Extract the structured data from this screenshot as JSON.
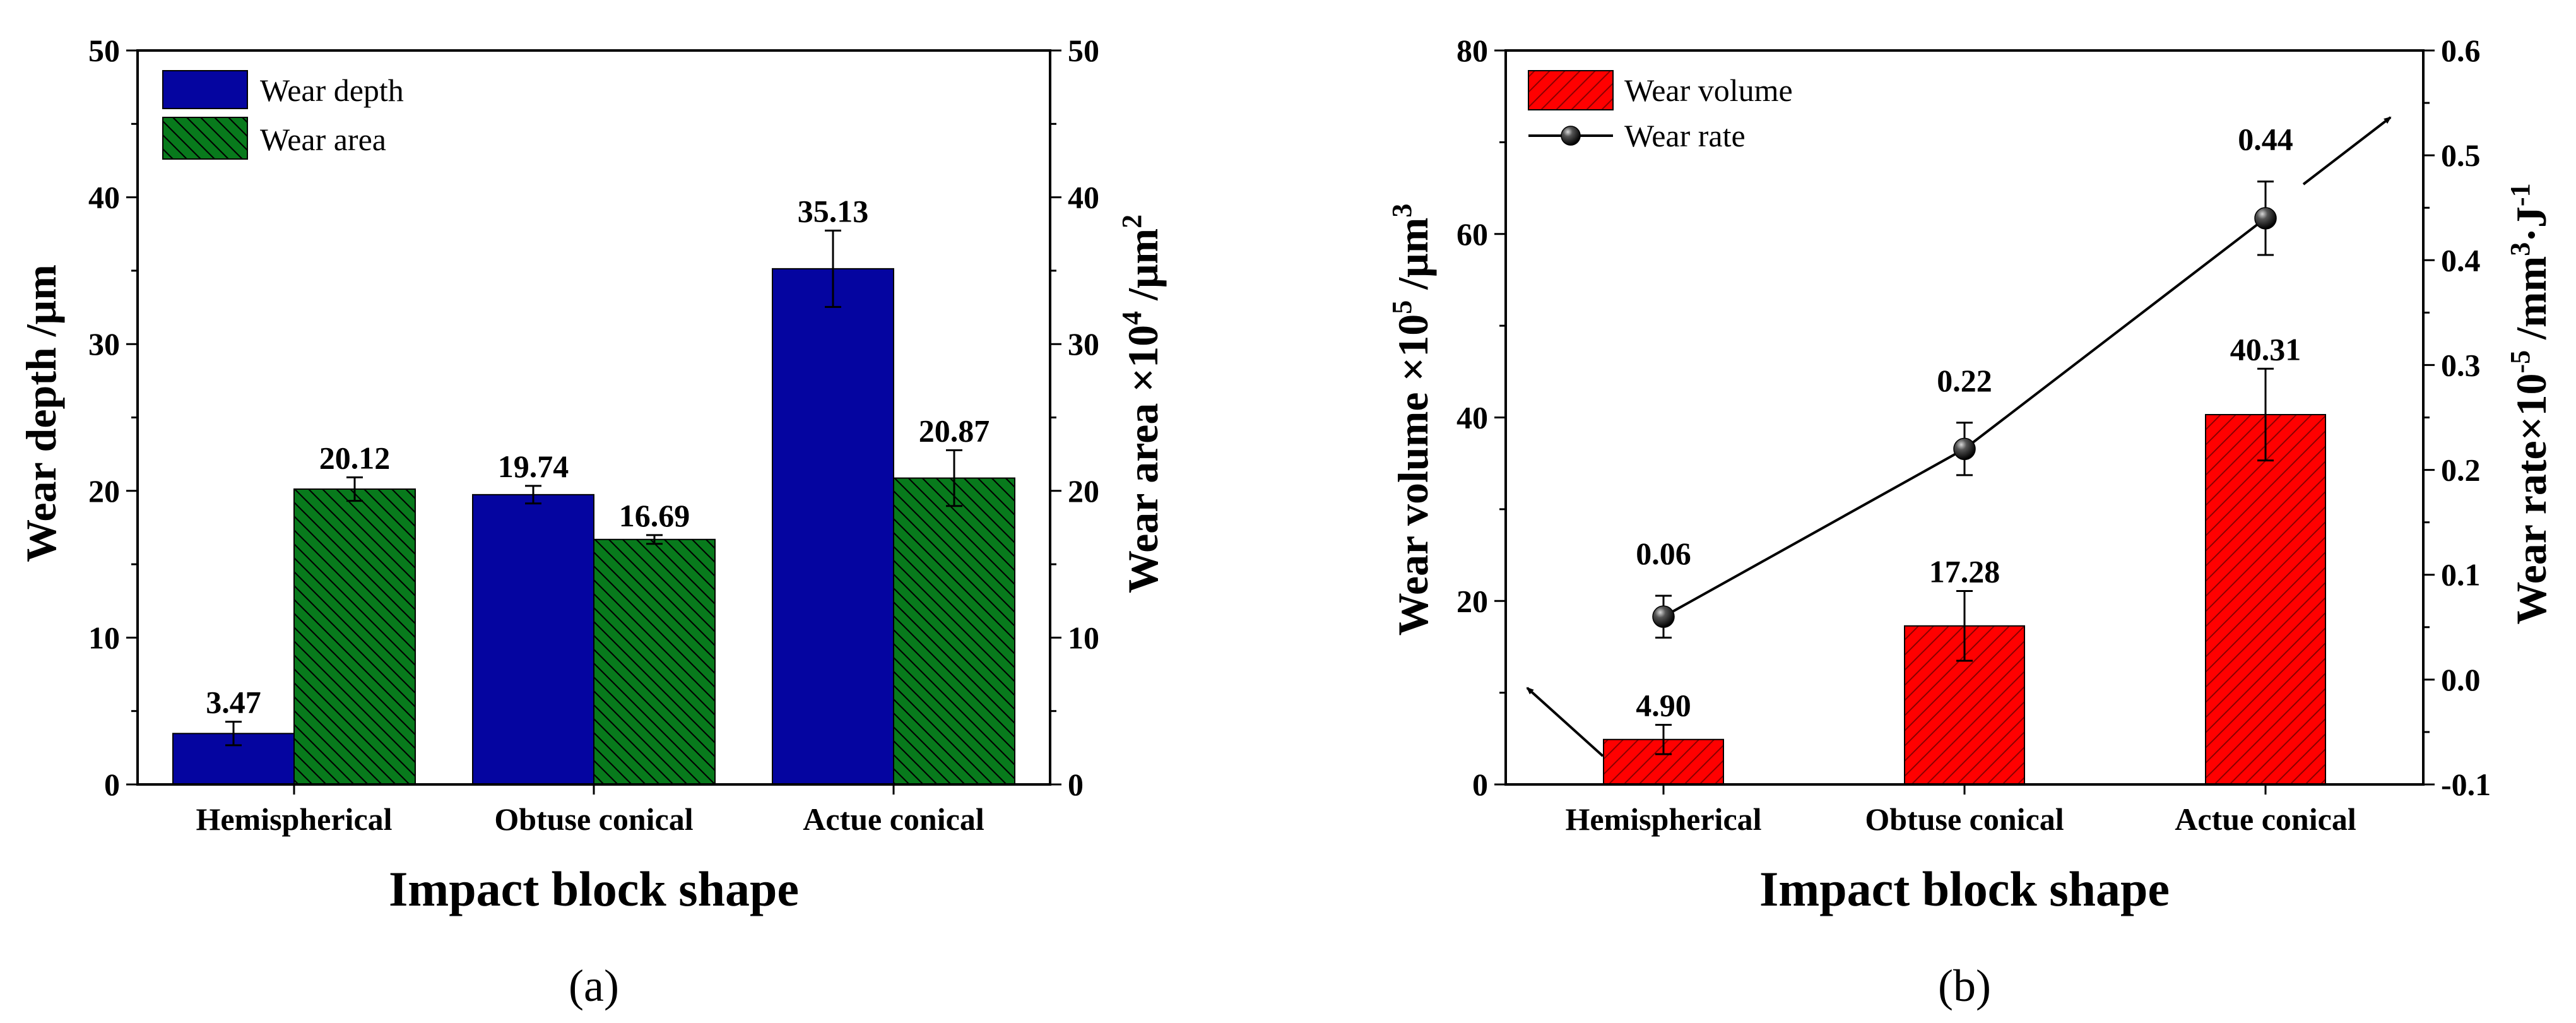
{
  "chart_data": [
    {
      "type": "bar",
      "panel_label": "(a)",
      "categories": [
        "Hemispherical",
        "Obtuse  conical",
        "Actue  conical"
      ],
      "xlabel": "Impact block shape",
      "ylabel_left": "Wear depth /μm",
      "ylabel_right": {
        "main": "Wear area ×10",
        "exp1": "4",
        "mid": " /μm",
        "exp2": "2"
      },
      "ylim_left": [
        0,
        50
      ],
      "ylim_right": [
        0,
        50
      ],
      "yticks": [
        0,
        10,
        20,
        30,
        40,
        50
      ],
      "legend_position": "top-left",
      "series": [
        {
          "name": "Wear depth",
          "axis": "left",
          "color": "#0505a0",
          "hatch": "none",
          "values": [
            3.47,
            19.74,
            35.13
          ],
          "errors": [
            0.8,
            0.6,
            2.6
          ],
          "labels": [
            "3.47",
            "19.74",
            "35.13"
          ]
        },
        {
          "name": "Wear area",
          "axis": "right",
          "color": "#087a1c",
          "hatch": "backslash",
          "values": [
            20.12,
            16.69,
            20.87
          ],
          "errors": [
            0.8,
            0.3,
            1.9
          ],
          "labels": [
            "20.12",
            "16.69",
            "20.87"
          ]
        }
      ]
    },
    {
      "type": "bar+line",
      "panel_label": "(b)",
      "categories": [
        "Hemispherical",
        "Obtuse  conical",
        "Actue  conical"
      ],
      "xlabel": "Impact block shape",
      "ylabel_left": {
        "main": "Wear volume ×10",
        "exp1": "5",
        "mid": " /μm",
        "exp2": "3"
      },
      "ylabel_right": {
        "main": "Wear rate×10",
        "exp1": "-5",
        "mid": " /mm",
        "exp2": "3",
        "tail": "·J",
        "exp3": "-1"
      },
      "ylim_left": [
        0,
        80
      ],
      "ylim_right": [
        -0.1,
        0.6
      ],
      "yticks_left": [
        0,
        20,
        40,
        60,
        80
      ],
      "yticks_right": [
        -0.1,
        0.0,
        0.1,
        0.2,
        0.3,
        0.4,
        0.5,
        0.6
      ],
      "yticks_right_labels": [
        "-0.1",
        "0.0",
        "0.1",
        "0.2",
        "0.3",
        "0.4",
        "0.5",
        "0.6"
      ],
      "legend_position": "top-left",
      "series": [
        {
          "name": "Wear volume",
          "axis": "left",
          "kind": "bar",
          "color": "#ff0000",
          "hatch": "slash",
          "values": [
            4.9,
            17.28,
            40.31
          ],
          "errors": [
            1.6,
            3.8,
            5.0
          ],
          "labels": [
            "4.90",
            "17.28",
            "40.31"
          ]
        },
        {
          "name": "Wear rate",
          "axis": "right",
          "kind": "line",
          "color": "#000000",
          "values": [
            0.06,
            0.22,
            0.44
          ],
          "errors": [
            0.02,
            0.025,
            0.035
          ],
          "labels": [
            "0.06",
            "0.22",
            "0.44"
          ]
        }
      ]
    }
  ]
}
